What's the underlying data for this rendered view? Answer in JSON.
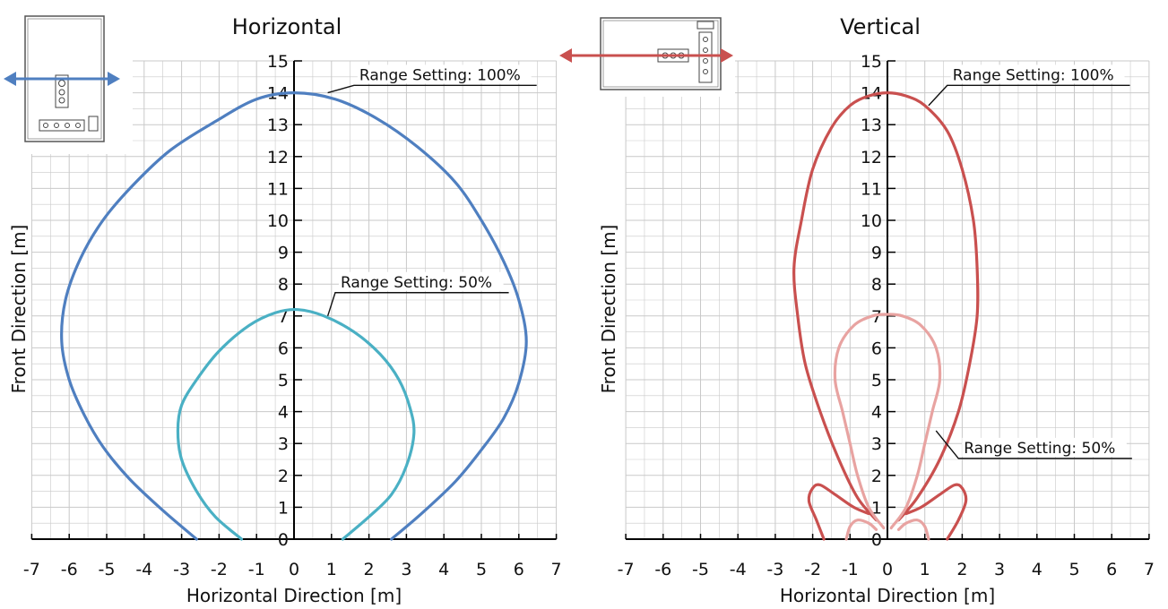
{
  "colors": {
    "h100": "#4f7fc0",
    "h50": "#4ab0c4",
    "v100": "#c9504f",
    "v50": "#e8a3a1",
    "grid": "#c9c9c9",
    "axis": "#000000"
  },
  "icons": {
    "horizontal": "device-icon-horizontal-orientation",
    "vertical": "device-icon-vertical-orientation"
  },
  "chart_data": [
    {
      "type": "line",
      "title": "Horizontal",
      "xlabel": "Horizontal Direction [m]",
      "ylabel": "Front Direction [m]",
      "xlim": [
        -7,
        7
      ],
      "ylim": [
        0,
        15
      ],
      "x_ticks": [
        "-7",
        "-6",
        "-5",
        "-4",
        "-3",
        "-2",
        "-1",
        "0",
        "1",
        "2",
        "3",
        "4",
        "5",
        "6",
        "7"
      ],
      "y_ticks": [
        "0",
        "1",
        "2",
        "3",
        "4",
        "5",
        "6",
        "7",
        "8",
        "9",
        "10",
        "11",
        "12",
        "13",
        "14",
        "15"
      ],
      "grid": true,
      "series": [
        {
          "label": "Range Setting: 100%",
          "color_key": "h100",
          "points": [
            [
              -2.6,
              0
            ],
            [
              -3.5,
              0.9
            ],
            [
              -4.4,
              1.9
            ],
            [
              -5.1,
              2.9
            ],
            [
              -5.6,
              3.9
            ],
            [
              -6.0,
              5.0
            ],
            [
              -6.2,
              6.2
            ],
            [
              -6.1,
              7.5
            ],
            [
              -5.7,
              8.8
            ],
            [
              -5.1,
              10.0
            ],
            [
              -4.3,
              11.1
            ],
            [
              -3.3,
              12.2
            ],
            [
              -2.1,
              13.1
            ],
            [
              -1.0,
              13.8
            ],
            [
              0,
              14.0
            ],
            [
              1.1,
              13.8
            ],
            [
              2.2,
              13.2
            ],
            [
              3.3,
              12.3
            ],
            [
              4.3,
              11.2
            ],
            [
              5.0,
              10.0
            ],
            [
              5.6,
              8.7
            ],
            [
              6.0,
              7.5
            ],
            [
              6.2,
              6.2
            ],
            [
              6.0,
              4.9
            ],
            [
              5.6,
              3.8
            ],
            [
              5.0,
              2.8
            ],
            [
              4.3,
              1.8
            ],
            [
              3.4,
              0.8
            ],
            [
              2.6,
              0
            ]
          ],
          "label_anchor": [
            0.9,
            14.0
          ],
          "label_pos": [
            1.6,
            14.4
          ]
        },
        {
          "label": "Range Setting: 50%",
          "color_key": "h50",
          "points": [
            [
              -1.4,
              0
            ],
            [
              -2.1,
              0.7
            ],
            [
              -2.6,
              1.5
            ],
            [
              -3.0,
              2.5
            ],
            [
              -3.1,
              3.4
            ],
            [
              -3.0,
              4.2
            ],
            [
              -2.6,
              5.0
            ],
            [
              -2.0,
              5.9
            ],
            [
              -1.2,
              6.7
            ],
            [
              -0.5,
              7.1
            ],
            [
              0.1,
              7.2
            ],
            [
              0.8,
              7.0
            ],
            [
              1.6,
              6.5
            ],
            [
              2.3,
              5.8
            ],
            [
              2.8,
              5.0
            ],
            [
              3.1,
              4.1
            ],
            [
              3.2,
              3.3
            ],
            [
              3.0,
              2.3
            ],
            [
              2.6,
              1.4
            ],
            [
              2.0,
              0.7
            ],
            [
              1.3,
              0
            ]
          ],
          "label_anchor": [
            0.9,
            7.0
          ],
          "label_pos": [
            1.1,
            7.9
          ]
        }
      ]
    },
    {
      "type": "line",
      "title": "Vertical",
      "xlabel": "Horizontal Direction [m]",
      "ylabel": "Front Direction [m]",
      "xlim": [
        -7,
        7
      ],
      "ylim": [
        0,
        15
      ],
      "x_ticks": [
        "-7",
        "-6",
        "-5",
        "-4",
        "-3",
        "-2",
        "-1",
        "0",
        "1",
        "2",
        "3",
        "4",
        "5",
        "6",
        "7"
      ],
      "y_ticks": [
        "0",
        "1",
        "2",
        "3",
        "4",
        "5",
        "6",
        "7",
        "8",
        "9",
        "10",
        "11",
        "12",
        "13",
        "14",
        "15"
      ],
      "grid": true,
      "series": [
        {
          "label": "Range Setting: 100%",
          "color_key": "v100",
          "points": [
            [
              0.3,
              0.6
            ],
            [
              0.8,
              1.3
            ],
            [
              1.4,
              2.5
            ],
            [
              1.9,
              4.0
            ],
            [
              2.2,
              5.5
            ],
            [
              2.4,
              7.0
            ],
            [
              2.4,
              8.5
            ],
            [
              2.3,
              10.0
            ],
            [
              2.0,
              11.6
            ],
            [
              1.6,
              12.8
            ],
            [
              1.0,
              13.6
            ],
            [
              0.5,
              13.9
            ],
            [
              0,
              14.0
            ],
            [
              -0.5,
              13.9
            ],
            [
              -1.0,
              13.6
            ],
            [
              -1.5,
              12.9
            ],
            [
              -2.0,
              11.6
            ],
            [
              -2.3,
              10.0
            ],
            [
              -2.5,
              8.5
            ],
            [
              -2.4,
              7.0
            ],
            [
              -2.2,
              5.5
            ],
            [
              -1.8,
              4.0
            ],
            [
              -1.3,
              2.5
            ],
            [
              -0.8,
              1.3
            ],
            [
              -0.3,
              0.6
            ]
          ],
          "label_anchor": [
            1.1,
            13.6
          ],
          "label_pos": [
            1.6,
            14.4
          ]
        },
        {
          "label": "",
          "color_key": "v100",
          "points": [
            [
              -1.7,
              0
            ],
            [
              -1.9,
              0.6
            ],
            [
              -2.1,
              1.2
            ],
            [
              -2.0,
              1.6
            ],
            [
              -1.8,
              1.7
            ],
            [
              -1.4,
              1.4
            ],
            [
              -0.9,
              1.0
            ],
            [
              -0.5,
              0.8
            ]
          ],
          "label_anchor": null,
          "label_pos": null
        },
        {
          "label": "",
          "color_key": "v100",
          "points": [
            [
              1.6,
              0
            ],
            [
              1.9,
              0.6
            ],
            [
              2.1,
              1.2
            ],
            [
              2.0,
              1.6
            ],
            [
              1.8,
              1.7
            ],
            [
              1.4,
              1.4
            ],
            [
              0.9,
              1.0
            ],
            [
              0.5,
              0.8
            ]
          ],
          "label_anchor": null,
          "label_pos": null
        },
        {
          "label": "Range Setting: 50%",
          "color_key": "v50",
          "points": [
            [
              0.1,
              0.35
            ],
            [
              0.5,
              1.0
            ],
            [
              0.8,
              2.0
            ],
            [
              1.0,
              3.0
            ],
            [
              1.2,
              4.0
            ],
            [
              1.4,
              5.0
            ],
            [
              1.3,
              6.0
            ],
            [
              0.9,
              6.7
            ],
            [
              0.4,
              7.0
            ],
            [
              0,
              7.05
            ],
            [
              -0.4,
              7.0
            ],
            [
              -0.9,
              6.7
            ],
            [
              -1.3,
              6.0
            ],
            [
              -1.4,
              5.0
            ],
            [
              -1.2,
              4.0
            ],
            [
              -1.0,
              3.0
            ],
            [
              -0.8,
              2.0
            ],
            [
              -0.5,
              1.0
            ],
            [
              -0.1,
              0.35
            ]
          ],
          "label_anchor": [
            1.3,
            3.4
          ],
          "label_pos": [
            1.9,
            2.7
          ]
        },
        {
          "label": "",
          "color_key": "v50",
          "points": [
            [
              -1.1,
              0
            ],
            [
              -1.0,
              0.4
            ],
            [
              -0.8,
              0.6
            ],
            [
              -0.5,
              0.5
            ],
            [
              -0.3,
              0.3
            ]
          ],
          "label_anchor": null,
          "label_pos": null
        },
        {
          "label": "",
          "color_key": "v50",
          "points": [
            [
              1.1,
              0
            ],
            [
              1.0,
              0.4
            ],
            [
              0.8,
              0.6
            ],
            [
              0.5,
              0.5
            ],
            [
              0.3,
              0.3
            ]
          ],
          "label_anchor": null,
          "label_pos": null
        }
      ]
    }
  ]
}
